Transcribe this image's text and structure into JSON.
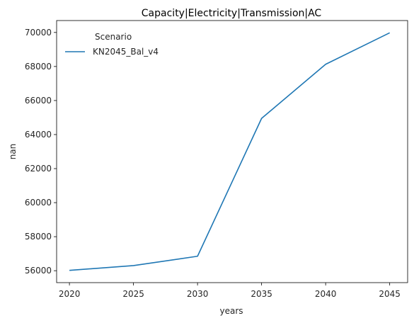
{
  "chart_data": {
    "type": "line",
    "title": "Capacity|Electricity|Transmission|AC",
    "xlabel": "years",
    "ylabel": "nan",
    "x": [
      2020,
      2025,
      2030,
      2035,
      2040,
      2045
    ],
    "x_ticks": [
      2020,
      2025,
      2030,
      2035,
      2040,
      2045
    ],
    "y_ticks": [
      56000,
      58000,
      60000,
      62000,
      64000,
      66000,
      68000,
      70000
    ],
    "xlim": [
      2019,
      2046.4
    ],
    "ylim": [
      55300,
      70700
    ],
    "legend": {
      "title": "Scenario",
      "placement": "top-left"
    },
    "series": [
      {
        "name": "KN2045_Bal_v4",
        "color": "#1f77b4",
        "values": [
          56020,
          56300,
          56850,
          64950,
          68130,
          69980
        ]
      }
    ],
    "grid": false
  }
}
